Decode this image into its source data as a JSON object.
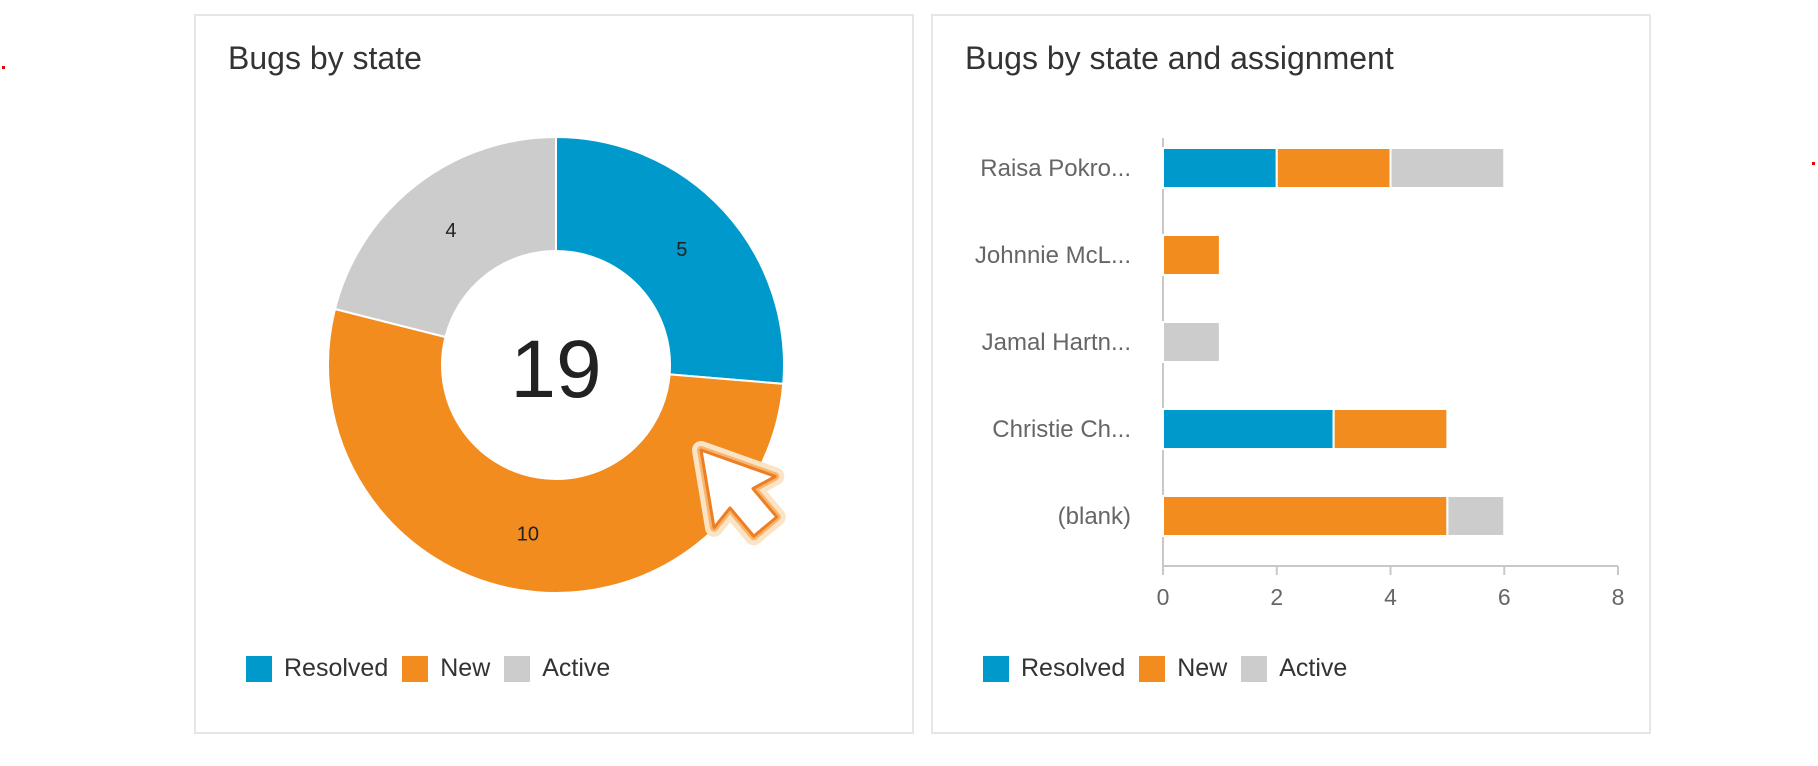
{
  "colors": {
    "resolved": "#0099cc",
    "new": "#f28c1e",
    "active": "#cccccc"
  },
  "legend": [
    "Resolved",
    "New",
    "Active"
  ],
  "donut_card": {
    "title": "Bugs by state",
    "total_label": "19"
  },
  "bar_card": {
    "title": "Bugs by state and assignment"
  },
  "chart_data": [
    {
      "type": "pie",
      "title": "Bugs by state",
      "center_label": "19",
      "labels": [
        "Resolved",
        "New",
        "Active"
      ],
      "values": [
        5,
        10,
        4
      ],
      "legend": "bottom-left"
    },
    {
      "type": "bar",
      "orientation": "horizontal",
      "stacked": true,
      "title": "Bugs by state and assignment",
      "categories": [
        "Raisa Pokro...",
        "Johnnie McL...",
        "Jamal Hartn...",
        "Christie Ch...",
        "(blank)"
      ],
      "series": [
        {
          "name": "Resolved",
          "values": [
            2,
            0,
            0,
            3,
            0
          ]
        },
        {
          "name": "New",
          "values": [
            2,
            1,
            0,
            2,
            5
          ]
        },
        {
          "name": "Active",
          "values": [
            2,
            0,
            1,
            0,
            1
          ]
        }
      ],
      "xlim": [
        0,
        8
      ],
      "xticks": [
        0,
        2,
        4,
        6,
        8
      ],
      "legend": "bottom-left"
    }
  ]
}
